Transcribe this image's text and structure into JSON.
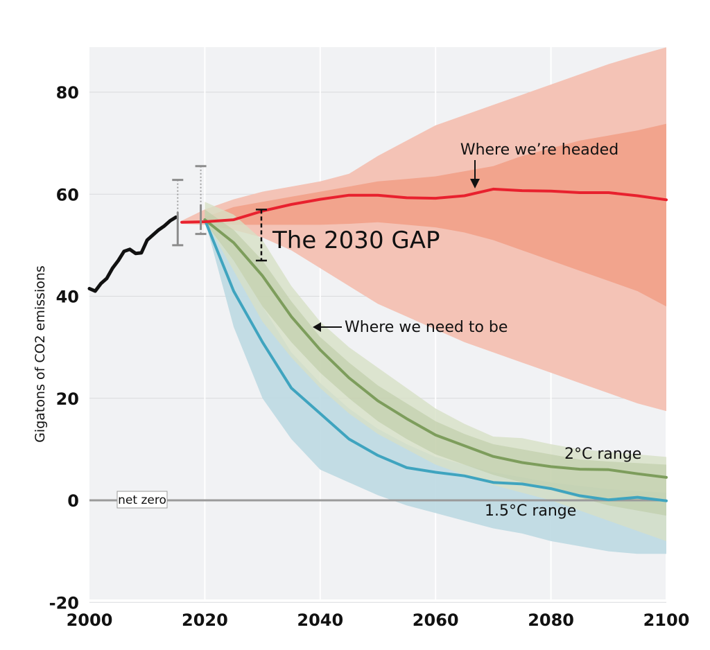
{
  "chart_data": {
    "type": "area",
    "ylabel": "Gigatons of CO2 emissions",
    "xlim": [
      2000,
      2100
    ],
    "ylim": [
      -20,
      89
    ],
    "x_ticks": [
      "2000",
      "2020",
      "2040",
      "2060",
      "2080",
      "2100"
    ],
    "y_ticks": [
      "-20",
      "0",
      "20",
      "40",
      "60",
      "80"
    ],
    "grid": true,
    "colors": {
      "historical": "#111111",
      "current": "#e8212e",
      "current_band_outer": "#f4c3b6",
      "current_band_inner": "#f19f86",
      "two_degree": "#7d9d5c",
      "two_degree_band_outer": "#d7e0c6",
      "two_degree_band_inner": "#b9c9a2",
      "one_five_degree": "#3fa4bf",
      "one_five_band": "#bcd9e2",
      "background": "#f1f2f4"
    },
    "series": [
      {
        "key": "historical",
        "x": [
          2000,
          2001,
          2002,
          2003,
          2004,
          2005,
          2006,
          2007,
          2008,
          2009,
          2010,
          2011,
          2012,
          2013,
          2014,
          2015
        ],
        "y": [
          41.5,
          41,
          42.5,
          43.5,
          45.5,
          47,
          48.8,
          49.2,
          48.4,
          48.5,
          51,
          52,
          53,
          53.8,
          54.8,
          55.5
        ]
      },
      {
        "key": "current",
        "x": [
          2016,
          2020,
          2025,
          2030,
          2035,
          2040,
          2045,
          2050,
          2055,
          2060,
          2065,
          2070,
          2075,
          2080,
          2085,
          2090,
          2095,
          2100
        ],
        "y": [
          54.5,
          54.6,
          55,
          56.7,
          58,
          59,
          59.8,
          59.8,
          59.3,
          59.2,
          59.7,
          61,
          60.7,
          60.6,
          60.3,
          60.3,
          59.7,
          58.9
        ]
      },
      {
        "key": "two_degree",
        "x": [
          2020,
          2025,
          2030,
          2035,
          2040,
          2045,
          2050,
          2055,
          2060,
          2065,
          2070,
          2075,
          2080,
          2085,
          2090,
          2095,
          2100
        ],
        "y": [
          55,
          50.5,
          44,
          36,
          29.5,
          24,
          19.5,
          16,
          12.8,
          10.7,
          8.6,
          7.4,
          6.6,
          6.1,
          6,
          5.2,
          4.5
        ]
      },
      {
        "key": "one_five_degree",
        "x": [
          2020,
          2025,
          2030,
          2035,
          2040,
          2045,
          2050,
          2055,
          2060,
          2065,
          2070,
          2075,
          2080,
          2085,
          2090,
          2095,
          2100
        ],
        "y": [
          55,
          41,
          31,
          22,
          17,
          12,
          8.8,
          6.4,
          5.5,
          4.8,
          3.5,
          3.2,
          2.3,
          0.9,
          0.1,
          0.6,
          -0.1
        ]
      }
    ],
    "bands": [
      {
        "key": "current_outer",
        "x": [
          2016,
          2020,
          2025,
          2030,
          2035,
          2040,
          2045,
          2050,
          2055,
          2060,
          2065,
          2070,
          2075,
          2080,
          2085,
          2090,
          2095,
          2100
        ],
        "upper": [
          54.8,
          57,
          59,
          60.5,
          61.5,
          62.5,
          64,
          67.5,
          70.5,
          73.5,
          75.5,
          77.5,
          79.5,
          81.5,
          83.5,
          85.5,
          87.2,
          88.8
        ],
        "lower": [
          54.2,
          54,
          53,
          51.5,
          49,
          45.5,
          42,
          38.5,
          36,
          33.5,
          31,
          29,
          27,
          25,
          23,
          21,
          19,
          17.5
        ]
      },
      {
        "key": "current_inner",
        "x": [
          2020,
          2025,
          2030,
          2035,
          2040,
          2045,
          2050,
          2055,
          2060,
          2065,
          2070,
          2075,
          2080,
          2085,
          2090,
          2095,
          2100
        ],
        "upper": [
          55.5,
          57.5,
          58.5,
          59.5,
          60.5,
          61.5,
          62.5,
          63,
          63.5,
          64.5,
          65.5,
          67.5,
          69,
          70.5,
          71.5,
          72.5,
          73.8
        ],
        "lower": [
          54.5,
          54,
          54,
          54,
          54,
          54.2,
          54.5,
          54,
          53.5,
          52.5,
          51,
          49,
          47,
          45,
          43,
          41,
          38
        ]
      },
      {
        "key": "two_degree_outer",
        "x": [
          2020,
          2025,
          2030,
          2035,
          2040,
          2045,
          2050,
          2055,
          2060,
          2065,
          2070,
          2075,
          2080,
          2085,
          2090,
          2095,
          2100
        ],
        "upper": [
          58.5,
          56,
          51,
          42,
          35,
          30,
          26,
          22,
          18,
          15,
          12.5,
          12.2,
          11,
          10,
          9.5,
          9,
          8.5
        ],
        "lower": [
          55,
          45,
          35,
          28,
          22,
          17,
          13,
          10,
          7,
          5,
          3,
          1.5,
          0,
          -2,
          -4,
          -6,
          -8
        ]
      },
      {
        "key": "two_degree_inner",
        "x": [
          2020,
          2025,
          2030,
          2035,
          2040,
          2045,
          2050,
          2055,
          2060,
          2065,
          2070,
          2075,
          2080,
          2085,
          2090,
          2095,
          2100
        ],
        "upper": [
          57,
          53,
          47,
          39,
          32,
          27,
          22.5,
          19,
          15.5,
          13,
          11,
          10,
          9,
          8,
          7.6,
          7.3,
          7
        ],
        "lower": [
          54.5,
          47,
          38,
          31,
          25,
          20,
          15.5,
          12,
          9,
          7,
          5,
          3.5,
          2,
          0.5,
          -1,
          -2,
          -3
        ]
      },
      {
        "key": "one_five",
        "x": [
          2020,
          2025,
          2030,
          2035,
          2040,
          2045,
          2050,
          2055,
          2060,
          2065,
          2070,
          2075,
          2080,
          2085,
          2090,
          2095,
          2100
        ],
        "upper": [
          55,
          47,
          38,
          29,
          23,
          18,
          14,
          11,
          8.5,
          7,
          5.5,
          4.5,
          3.5,
          2.8,
          2.2,
          1.8,
          1.5
        ],
        "lower": [
          55,
          34,
          20,
          12,
          6,
          3.5,
          1,
          -1,
          -2.5,
          -4,
          -5.5,
          -6.5,
          -8,
          -9,
          -10,
          -10.5,
          -10.5
        ]
      }
    ],
    "error_bars": [
      {
        "x": 2015.3,
        "low": 50,
        "high": 62.8,
        "mid_low": 50,
        "mid_high": 56.5
      },
      {
        "x": 2019.3,
        "low": 52.2,
        "high": 65.5,
        "mid_low": 53,
        "mid_high": 58
      }
    ],
    "gap_bar": {
      "x": 2029.8,
      "low": 47,
      "high": 57
    },
    "net_zero_line": 0,
    "annotations": {
      "net_zero": "net zero",
      "headed": "Where we’re headed",
      "gap": "The 2030 GAP",
      "need": "Where we need to be",
      "two_degree_range": "2°C range",
      "one_five_range": "1.5°C range"
    }
  }
}
